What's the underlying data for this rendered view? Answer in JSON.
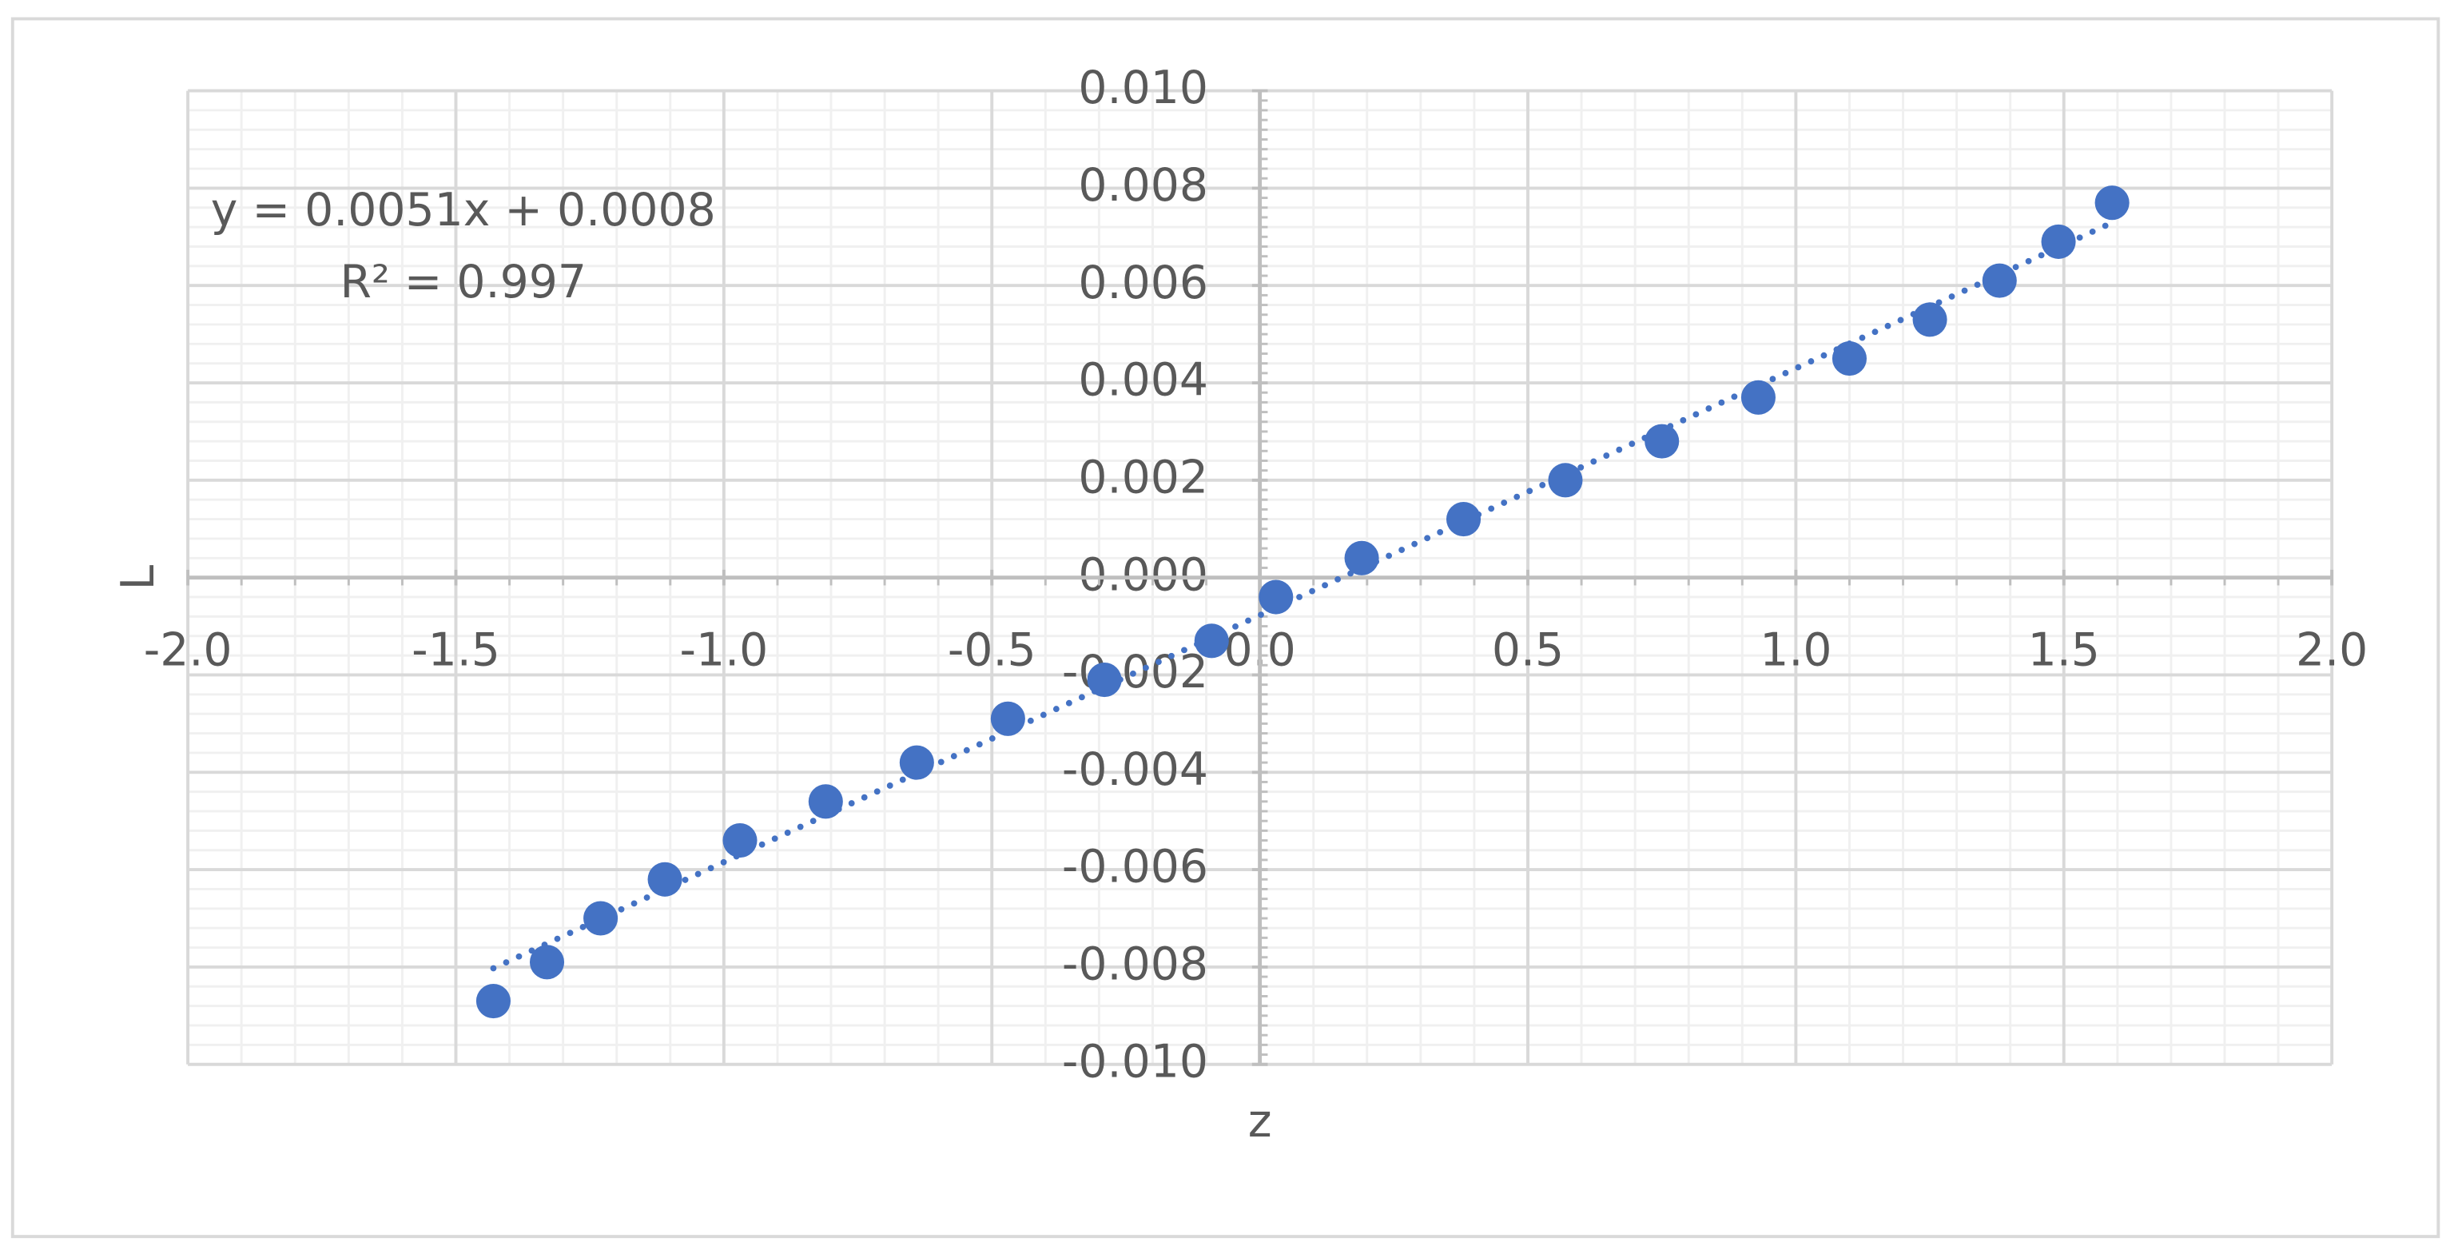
{
  "chart_data": {
    "type": "scatter",
    "x_label": "z",
    "y_label": "L",
    "trendline_equation": "y = 0.0051x + 0.0008",
    "trendline_r2": "R² = 0.997",
    "series": [
      {
        "name": "L",
        "color": "#4472c4",
        "x": [
          -1.43,
          -1.33,
          -1.23,
          -1.11,
          -0.97,
          -0.81,
          -0.64,
          -0.47,
          -0.29,
          -0.09,
          0.03,
          0.19,
          0.38,
          0.57,
          0.75,
          0.93,
          1.1,
          1.25,
          1.38,
          1.49,
          1.59
        ],
        "values": [
          -0.0087,
          -0.0079,
          -0.007,
          -0.0062,
          -0.0054,
          -0.0046,
          -0.0038,
          -0.0029,
          -0.0021,
          -0.0013,
          -0.0004,
          0.0004,
          0.0012,
          0.002,
          0.0028,
          0.0037,
          0.0045,
          0.0053,
          0.0061,
          0.0069,
          0.0077
        ]
      }
    ],
    "xlim": [
      -2,
      2
    ],
    "xticks": [
      {
        "value": -2,
        "label": "-2.0"
      },
      {
        "value": -1.5,
        "label": "-1.5"
      },
      {
        "value": -1,
        "label": "-1.0"
      },
      {
        "value": -0.5,
        "label": "-0.5"
      },
      {
        "value": 0,
        "label": "0.0"
      },
      {
        "value": 0.5,
        "label": "0.5"
      },
      {
        "value": 1,
        "label": "1.0"
      },
      {
        "value": 1.5,
        "label": "1.5"
      },
      {
        "value": 2,
        "label": "2.0"
      }
    ],
    "ylim": [
      -0.01,
      0.01
    ],
    "yticks": [
      {
        "value": -0.01,
        "label": "-0.010"
      },
      {
        "value": -0.008,
        "label": "-0.008"
      },
      {
        "value": -0.006,
        "label": "-0.006"
      },
      {
        "value": -0.004,
        "label": "-0.004"
      },
      {
        "value": -0.002,
        "label": "-0.002"
      },
      {
        "value": 0,
        "label": "0.000"
      },
      {
        "value": 0.002,
        "label": "0.002"
      },
      {
        "value": 0.004,
        "label": "0.004"
      },
      {
        "value": 0.006,
        "label": "0.006"
      },
      {
        "value": 0.008,
        "label": "0.008"
      },
      {
        "value": 0.01,
        "label": "0.010"
      }
    ],
    "grid": true,
    "trendline": "dotted"
  }
}
